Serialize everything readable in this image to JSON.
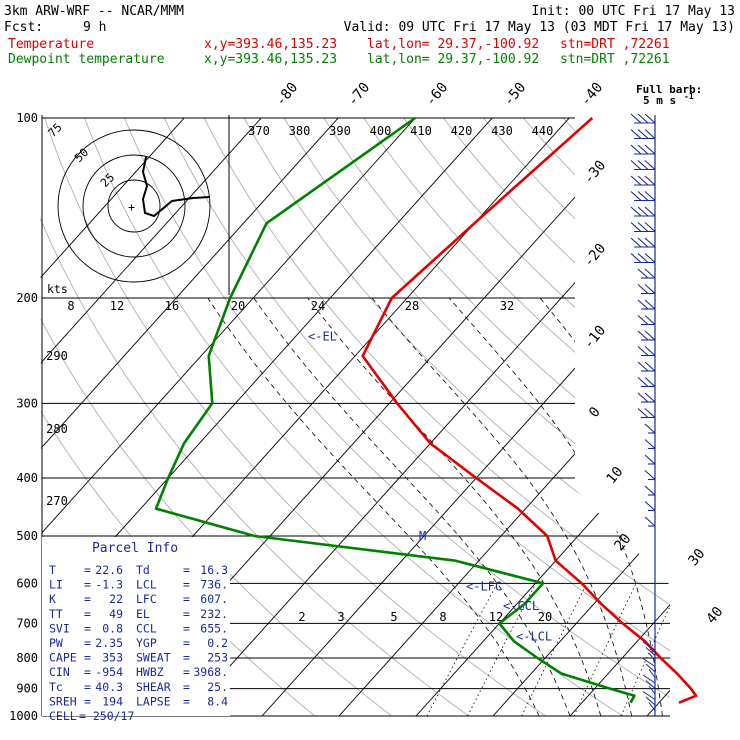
{
  "header": {
    "model": "3km ARW-WRF -- NCAR/MMM",
    "init": "Init: 00 UTC Fri 17 May 13",
    "fcst_label": "Fcst:",
    "fcst_value": "9 h",
    "valid": "Valid: 09 UTC Fri 17 May 13 (03 MDT Fri 17 May 13)",
    "lines": [
      {
        "name": "Temperature",
        "loc": "x,y=393.46,135.23",
        "latlon": "lat,lon= 29.37,-100.92",
        "stn": "stn=DRT ,72261",
        "color": "#e00000"
      },
      {
        "name": "Dewpoint temperature",
        "loc": "x,y=393.46,135.23",
        "latlon": "lat,lon= 29.37,-100.92",
        "stn": "stn=DRT ,72261",
        "color": "#008000"
      }
    ]
  },
  "barb_key": {
    "title": "Full barb:",
    "value": "5 m s",
    "exp": "-1"
  },
  "hodograph": {
    "ring_labels": [
      "75",
      "50",
      "25"
    ],
    "units": "kts"
  },
  "chart_data": {
    "type": "line",
    "subtype": "skew-T log-P sounding",
    "pressure_levels": [
      100,
      200,
      300,
      400,
      500,
      600,
      700,
      800,
      900,
      1000
    ],
    "isotherm_labels": [
      -80,
      -70,
      -60,
      -50,
      -40,
      -30,
      -20,
      -10,
      0,
      10,
      20,
      30,
      40
    ],
    "theta_labels": [
      370,
      380,
      390,
      400,
      410,
      420,
      430,
      440
    ],
    "theta_labels_mid": [
      290,
      280,
      270
    ],
    "mixing_ratio_labels_upper": [
      8,
      12,
      16,
      20,
      24,
      28,
      32
    ],
    "mixing_ratio_labels_lower": [
      2,
      3,
      5,
      8,
      12,
      20
    ],
    "series": [
      {
        "name": "Temperature",
        "color": "#e00000",
        "points": [
          [
            100,
            -57
          ],
          [
            150,
            -60
          ],
          [
            200,
            -62
          ],
          [
            250,
            -59
          ],
          [
            300,
            -49
          ],
          [
            350,
            -40
          ],
          [
            400,
            -30
          ],
          [
            450,
            -21
          ],
          [
            500,
            -14
          ],
          [
            550,
            -10
          ],
          [
            600,
            -4
          ],
          [
            650,
            1
          ],
          [
            700,
            6
          ],
          [
            750,
            11
          ],
          [
            800,
            15
          ],
          [
            850,
            19
          ],
          [
            900,
            22.5
          ],
          [
            925,
            24
          ],
          [
            950,
            22.6
          ]
        ]
      },
      {
        "name": "Dewpoint temperature",
        "color": "#008000",
        "points": [
          [
            100,
            -80
          ],
          [
            150,
            -87
          ],
          [
            200,
            -83
          ],
          [
            250,
            -79
          ],
          [
            300,
            -73
          ],
          [
            350,
            -72
          ],
          [
            400,
            -70
          ],
          [
            450,
            -68
          ],
          [
            500,
            -52
          ],
          [
            550,
            -23
          ],
          [
            600,
            -9
          ],
          [
            650,
            -9
          ],
          [
            700,
            -10
          ],
          [
            750,
            -6
          ],
          [
            800,
            -1
          ],
          [
            850,
            4
          ],
          [
            900,
            12
          ],
          [
            925,
            16
          ],
          [
            950,
            16.3
          ]
        ]
      }
    ],
    "annotations": [
      {
        "text": "<-EL",
        "p": 232
      },
      {
        "text": "M",
        "p": 500
      },
      {
        "text": "<-LFC",
        "p": 607
      },
      {
        "text": "<-CCL",
        "p": 655
      },
      {
        "text": "<-LCL",
        "p": 736
      }
    ]
  },
  "parcel_info": {
    "title": "Parcel Info",
    "rows": [
      [
        {
          "k": "T",
          "v": "22.6"
        },
        {
          "k": "Td",
          "v": "16.3"
        }
      ],
      [
        {
          "k": "LI",
          "v": "-1.3"
        },
        {
          "k": "LCL",
          "v": "736."
        }
      ],
      [
        {
          "k": "K",
          "v": "22"
        },
        {
          "k": "LFC",
          "v": "607."
        }
      ],
      [
        {
          "k": "TT",
          "v": "49"
        },
        {
          "k": "EL",
          "v": "232."
        }
      ],
      [
        {
          "k": "SVI",
          "v": "0.8"
        },
        {
          "k": "CCL",
          "v": "655."
        }
      ],
      [
        {
          "k": "PW",
          "v": "2.35"
        },
        {
          "k": "YGP",
          "v": "0.2"
        }
      ],
      [
        {
          "k": "CAPE",
          "v": "353"
        },
        {
          "k": "SWEAT",
          "v": "253"
        }
      ],
      [
        {
          "k": "CIN",
          "v": "-954"
        },
        {
          "k": "HWBZ",
          "v": "3968."
        }
      ],
      [
        {
          "k": "Tc",
          "v": "40.3"
        },
        {
          "k": "SHEAR",
          "v": "25."
        }
      ],
      [
        {
          "k": "SREH",
          "v": "194"
        },
        {
          "k": "LAPSE",
          "v": "8.4"
        }
      ],
      [
        {
          "k": "CELL",
          "v": "250/17"
        }
      ]
    ]
  }
}
